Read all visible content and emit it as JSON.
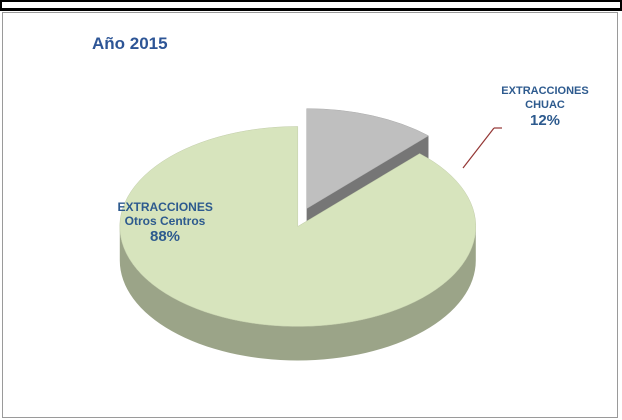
{
  "chart_data": {
    "type": "pie",
    "title": "Año 2015",
    "categories": [
      "EXTRACCIONES CHUAC",
      "EXTRACCIONES Otros Centros"
    ],
    "values": [
      12,
      88
    ],
    "value_labels": [
      "12%",
      "88%"
    ],
    "colors": [
      "#bfbfbf",
      "#d7e4bd"
    ]
  }
}
